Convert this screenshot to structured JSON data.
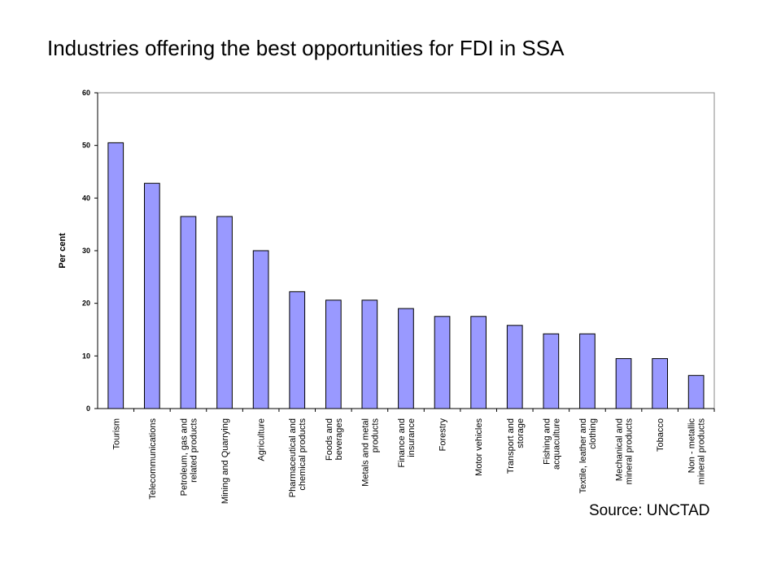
{
  "title": "Industries offering the best opportunities for FDI in SSA",
  "source": "Source: UNCTAD",
  "colors": {
    "bar_fill": "#9999ff",
    "bar_stroke": "#000000",
    "axis": "#000000",
    "plot_border": "#888888"
  },
  "chart_data": {
    "type": "bar",
    "ylabel": "Per cent",
    "xlabel": "",
    "ylim": [
      0,
      60
    ],
    "yticks": [
      0,
      10,
      20,
      30,
      40,
      50,
      60
    ],
    "grid": false,
    "categories": [
      "Tourism",
      "Telecommunications",
      "Petroleum, gas and related products",
      "Mining and Quarrying",
      "Agriculture",
      "Pharmaceutical and chemical products",
      "Foods and beverages",
      "Metals and metal products",
      "Finance and insurance",
      "Forestry",
      "Motor vehicles",
      "Transport and storage",
      "Fishing and acquaculture",
      "Textile, leather and clothing",
      "Mechanical and mineral products",
      "Tobacco",
      "Non - metallic mineral products"
    ],
    "category_lines": [
      [
        "Tourism"
      ],
      [
        "Telecommunications"
      ],
      [
        "Petroleum, gas and",
        "related products"
      ],
      [
        "Mining and Quarrying"
      ],
      [
        "Agriculture"
      ],
      [
        "Pharmaceutical and",
        "chemical products"
      ],
      [
        "Foods and",
        "beverages"
      ],
      [
        "Metals and metal",
        "products"
      ],
      [
        "Finance and",
        "insurance"
      ],
      [
        "Forestry"
      ],
      [
        "Motor vehicles"
      ],
      [
        "Transport and",
        "storage"
      ],
      [
        "Fishing and",
        "acquaculture"
      ],
      [
        "Textile, leather and",
        "clothing"
      ],
      [
        "Mechanical  and",
        "mineral products"
      ],
      [
        "Tobacco"
      ],
      [
        "Non - metallic",
        "mineral products"
      ]
    ],
    "values": [
      50.5,
      42.8,
      36.5,
      36.5,
      30.0,
      22.2,
      20.6,
      20.6,
      19.0,
      17.5,
      17.5,
      15.8,
      14.2,
      14.2,
      9.5,
      9.5,
      6.3
    ]
  }
}
